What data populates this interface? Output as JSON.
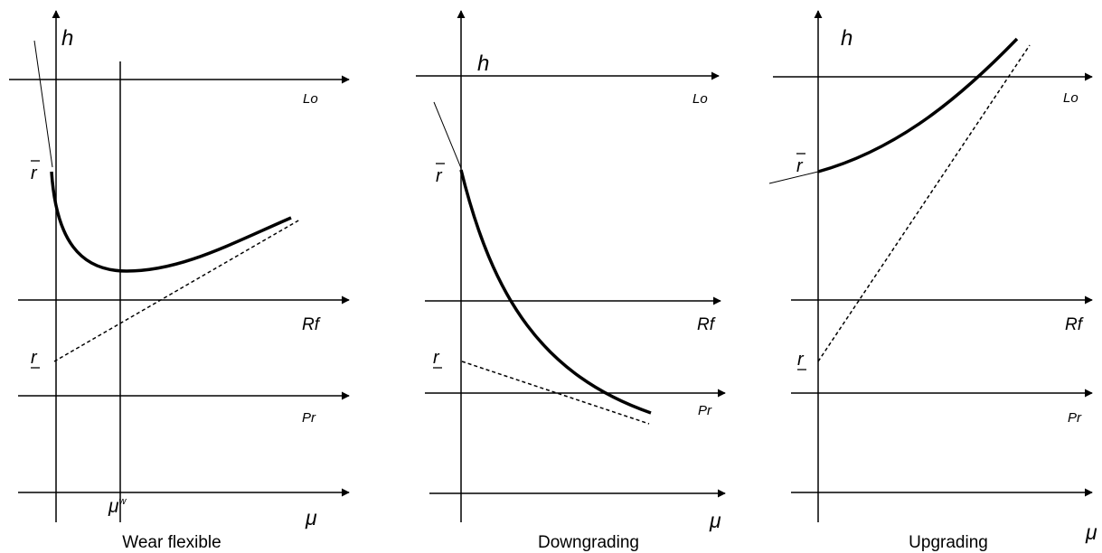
{
  "panels": [
    {
      "caption": "Wear flexible",
      "y_label": "h",
      "x_label": "μ",
      "axis_labels": {
        "lo": "Lo",
        "rf": "Rf",
        "pr": "Pr"
      },
      "r_upper": "r",
      "r_lower": "r",
      "tick_label": "μ",
      "tick_sup": "w"
    },
    {
      "caption": "Downgrading",
      "y_label": "h",
      "x_label": "μ",
      "axis_labels": {
        "lo": "Lo",
        "rf": "Rf",
        "pr": "Pr"
      },
      "r_upper": "r",
      "r_lower": "r"
    },
    {
      "caption": "Upgrading",
      "y_label": "h",
      "x_label": "μ",
      "axis_labels": {
        "lo": "Lo",
        "rf": "Rf",
        "pr": "Pr"
      },
      "r_upper": "r",
      "r_lower": "r"
    }
  ],
  "colors": {
    "ink": "#000000"
  }
}
